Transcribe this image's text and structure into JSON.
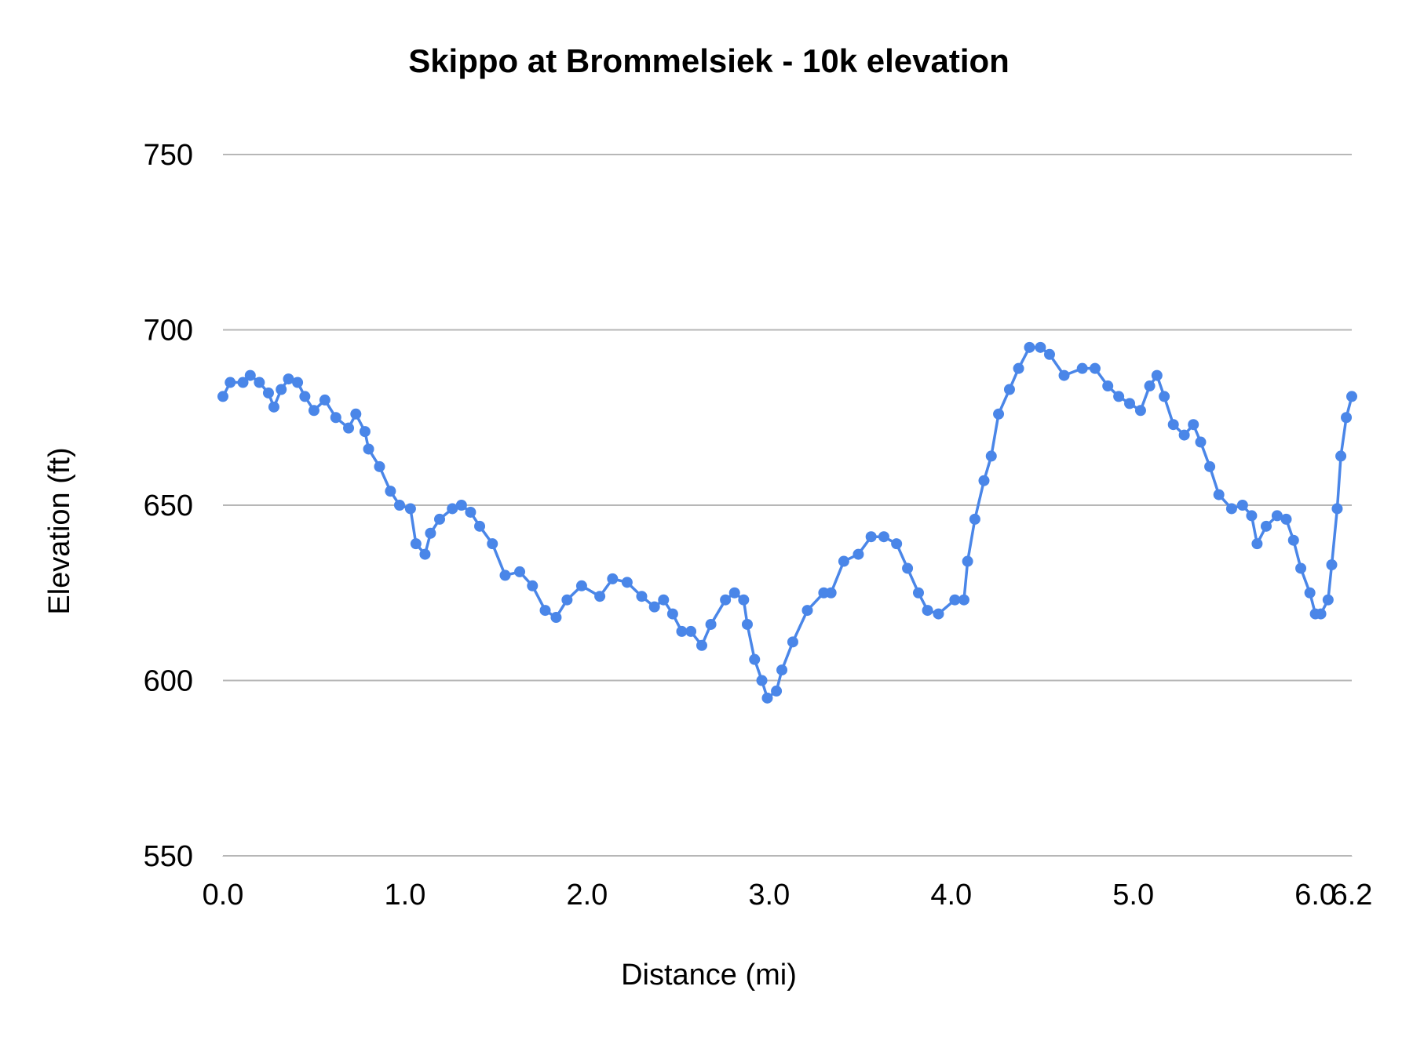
{
  "chart_data": {
    "type": "line",
    "title": "Skippo at Brommelsiek - 10k  elevation",
    "x_label": "Distance (mi)",
    "y_label": "Elevation (ft)",
    "xlim": [
      0,
      6.2
    ],
    "xticks": [
      {
        "value": 0,
        "label": "0.0"
      },
      {
        "value": 1,
        "label": "1.0"
      },
      {
        "value": 2,
        "label": "2.0"
      },
      {
        "value": 3,
        "label": "3.0"
      },
      {
        "value": 4,
        "label": "4.0"
      },
      {
        "value": 5,
        "label": "5.0"
      },
      {
        "value": 6,
        "label": "6.0"
      },
      6.2
    ],
    "ylim": [
      550,
      750
    ],
    "yticks": [
      550,
      600,
      650,
      700,
      750
    ],
    "grid": true,
    "x": [
      0.0,
      0.04,
      0.11,
      0.15,
      0.2,
      0.25,
      0.28,
      0.32,
      0.36,
      0.41,
      0.45,
      0.5,
      0.56,
      0.62,
      0.69,
      0.73,
      0.78,
      0.8,
      0.86,
      0.92,
      0.97,
      1.03,
      1.06,
      1.11,
      1.14,
      1.19,
      1.26,
      1.31,
      1.36,
      1.41,
      1.48,
      1.55,
      1.63,
      1.7,
      1.77,
      1.83,
      1.89,
      1.97,
      2.07,
      2.14,
      2.22,
      2.3,
      2.37,
      2.42,
      2.47,
      2.52,
      2.57,
      2.63,
      2.68,
      2.76,
      2.81,
      2.86,
      2.88,
      2.92,
      2.96,
      2.99,
      3.04,
      3.07,
      3.13,
      3.21,
      3.3,
      3.34,
      3.41,
      3.49,
      3.56,
      3.63,
      3.7,
      3.76,
      3.82,
      3.87,
      3.93,
      4.02,
      4.07,
      4.09,
      4.13,
      4.18,
      4.22,
      4.26,
      4.32,
      4.37,
      4.43,
      4.49,
      4.54,
      4.62,
      4.72,
      4.79,
      4.86,
      4.92,
      4.98,
      5.04,
      5.09,
      5.13,
      5.17,
      5.22,
      5.28,
      5.33,
      5.37,
      5.42,
      5.47,
      5.54,
      5.6,
      5.65,
      5.68,
      5.73,
      5.79,
      5.84,
      5.88,
      5.92,
      5.97,
      6.0,
      6.03,
      6.07,
      6.09,
      6.12,
      6.14,
      6.17,
      6.2
    ],
    "series": [
      {
        "name": "Elevation",
        "color": "#4a86e8",
        "values": [
          681,
          685,
          685,
          687,
          685,
          682,
          678,
          683,
          686,
          685,
          681,
          677,
          680,
          675,
          672,
          676,
          671,
          666,
          661,
          654,
          650,
          649,
          639,
          636,
          642,
          646,
          649,
          650,
          648,
          644,
          639,
          630,
          631,
          627,
          620,
          618,
          623,
          627,
          624,
          629,
          628,
          624,
          621,
          623,
          619,
          614,
          614,
          610,
          616,
          623,
          625,
          623,
          616,
          606,
          600,
          595,
          597,
          603,
          611,
          620,
          625,
          625,
          634,
          636,
          641,
          641,
          639,
          632,
          625,
          620,
          619,
          623,
          623,
          634,
          646,
          657,
          664,
          676,
          683,
          689,
          695,
          695,
          693,
          687,
          689,
          689,
          684,
          681,
          679,
          677,
          684,
          687,
          681,
          673,
          670,
          673,
          668,
          661,
          653,
          649,
          650,
          647,
          639,
          644,
          647,
          646,
          640,
          632,
          625,
          619,
          619,
          623,
          633,
          649,
          664,
          675,
          681
        ]
      }
    ]
  }
}
